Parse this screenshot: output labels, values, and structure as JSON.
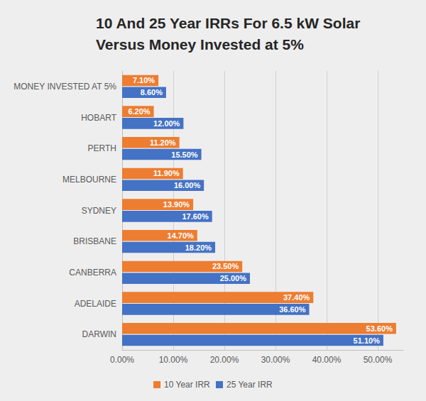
{
  "chart_data": {
    "type": "bar",
    "orientation": "horizontal",
    "title": "10 And 25 Year IRRs For 6.5 kW Solar\nVersus Money Invested at 5%",
    "categories": [
      "MONEY INVESTED AT 5%",
      "HOBART",
      "PERTH",
      "MELBOURNE",
      "SYDNEY",
      "BRISBANE",
      "CANBERRA",
      "ADELAIDE",
      "DARWIN"
    ],
    "series": [
      {
        "name": "10 Year IRR",
        "color": "#ed7d31",
        "values": [
          7.1,
          6.2,
          11.2,
          11.9,
          13.9,
          14.7,
          23.5,
          37.4,
          53.6
        ],
        "value_labels": [
          "7.10%",
          "6.20%",
          "11.20%",
          "11.90%",
          "13.90%",
          "14.70%",
          "23.50%",
          "37.40%",
          "53.60%"
        ]
      },
      {
        "name": "25 Year IRR",
        "color": "#4472c4",
        "values": [
          8.6,
          12.0,
          15.5,
          16.0,
          17.6,
          18.2,
          25.0,
          36.6,
          51.1
        ],
        "value_labels": [
          "8.60%",
          "12.00%",
          "15.50%",
          "16.00%",
          "17.60%",
          "18.20%",
          "25.00%",
          "36.60%",
          "51.10%"
        ]
      }
    ],
    "xlim": [
      0,
      55
    ],
    "xticks": [
      {
        "value": 0,
        "label": "0.00%"
      },
      {
        "value": 10,
        "label": "10.00%"
      },
      {
        "value": 20,
        "label": "20.00%"
      },
      {
        "value": 30,
        "label": "30.00%"
      },
      {
        "value": 40,
        "label": "40.00%"
      },
      {
        "value": 50,
        "label": "50.00%"
      }
    ],
    "grid": true,
    "legend": "bottom",
    "data_labels": true
  }
}
